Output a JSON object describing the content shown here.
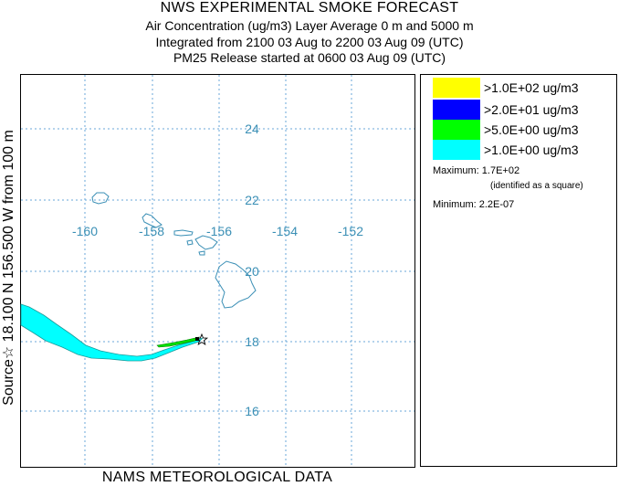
{
  "header": {
    "title": "NWS EXPERIMENTAL SMOKE FORECAST",
    "line2": "Air Concentration (ug/m3) Layer Average    0 m and  5000 m",
    "line3": "Integrated from 2100 03 Aug to 2200 03 Aug 09 (UTC)",
    "line4": "PM25 Release started at 0600 03 Aug 09 (UTC)"
  },
  "side_label": "Source☆ 18.100  N 156.500  W     from  100 m",
  "footer": "NAMS METEOROLOGICAL DATA",
  "map": {
    "lat_labels": [
      "24",
      "22",
      "20",
      "18",
      "16"
    ],
    "lon_labels": [
      "-160",
      "-158",
      "-156",
      "-154",
      "-152"
    ],
    "colors": {
      "grid": "#6aa7d8",
      "coast": "#3a8fb5",
      "plume_low": "#00ffff",
      "plume_mid": "#00e000"
    }
  },
  "legend": {
    "items": [
      {
        "label": ">1.0E+02 ug/m3",
        "color": "#ffff00"
      },
      {
        "label": ">2.0E+01 ug/m3",
        "color": "#0000ff"
      },
      {
        "label": ">5.0E+00 ug/m3",
        "color": "#00ff00"
      },
      {
        "label": ">1.0E+00 ug/m3",
        "color": "#00ffff"
      }
    ],
    "maximum": "Maximum: 1.7E+02",
    "identified": "(identified as a square)",
    "minimum": "Minimum: 2.2E-07"
  }
}
